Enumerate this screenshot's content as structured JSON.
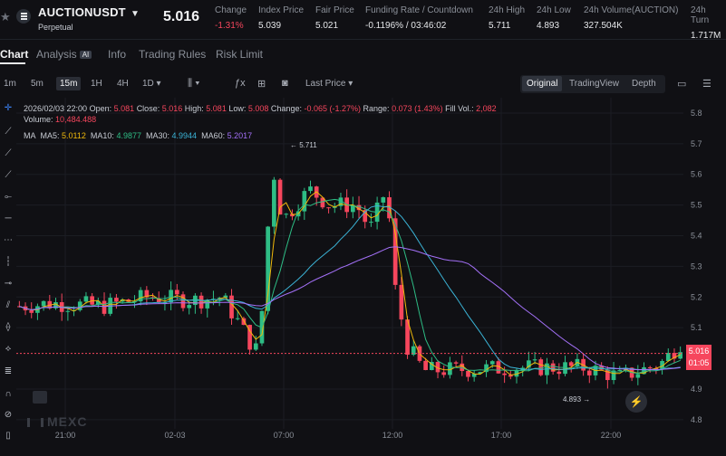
{
  "header": {
    "symbol": "AUCTIONUSDT",
    "contract_type": "Perpetual",
    "last_price": "5.016",
    "stats": [
      {
        "label": "Change",
        "value": "-1.31%",
        "negative": true
      },
      {
        "label": "Index Price",
        "value": "5.039"
      },
      {
        "label": "Fair Price",
        "value": "5.021"
      },
      {
        "label": "Funding Rate / Countdown",
        "value": "-0.1196% / 03:46:02"
      },
      {
        "label": "24h High",
        "value": "5.711"
      },
      {
        "label": "24h Low",
        "value": "4.893"
      },
      {
        "label": "24h Volume(AUCTION)",
        "value": "327.504K"
      },
      {
        "label": "24h Turn",
        "value": "1.717M"
      }
    ]
  },
  "tabs": [
    {
      "label": "Chart",
      "active": true
    },
    {
      "label": "Analysis",
      "badge": "AI"
    },
    {
      "label": "Info"
    },
    {
      "label": "Trading Rules"
    },
    {
      "label": "Risk Limit"
    }
  ],
  "toolbar": {
    "timeframes": [
      {
        "label": "1m"
      },
      {
        "label": "5m"
      },
      {
        "label": "15m",
        "active": true
      },
      {
        "label": "1H"
      },
      {
        "label": "4H"
      },
      {
        "label": "1D ▾"
      }
    ],
    "price_type": "Last Price ▾",
    "views": [
      {
        "label": "Original",
        "active": true
      },
      {
        "label": "TradingView"
      },
      {
        "label": "Depth"
      }
    ]
  },
  "ohlc": {
    "datetime": "2026/02/03 22:00",
    "open_label": "Open:",
    "open": "5.081",
    "close_label": "Close:",
    "close": "5.016",
    "high_label": "High:",
    "high": "5.081",
    "low_label": "Low:",
    "low": "5.008",
    "change_label": "Change:",
    "change": "-0.065 (-1.27%)",
    "range_label": "Range:",
    "range": "0.073 (1.43%)",
    "fill_label": "Fill Vol.:",
    "fill": "2,082",
    "volume_label": "Volume:",
    "volume": "10,484.488"
  },
  "ma": {
    "title": "MA",
    "ma5_label": "MA5:",
    "ma5": "5.0112",
    "ma10_label": "MA10:",
    "ma10": "4.9877",
    "ma30_label": "MA30:",
    "ma30": "4.9944",
    "ma60_label": "MA60:",
    "ma60": "5.2017"
  },
  "colors": {
    "up": "#2ebd85",
    "down": "#f6465d",
    "ma5": "#f0b90b",
    "ma10": "#2ebd85",
    "ma30": "#3bb3d6",
    "ma60": "#a370f7"
  },
  "chart_data": {
    "type": "candlestick",
    "y_axis_labels": [
      "5.8",
      "5.7",
      "5.6",
      "5.5",
      "5.4",
      "5.3",
      "5.2",
      "5.1",
      "4.9",
      "4.8"
    ],
    "x_axis_labels": [
      "21:00",
      "02-03",
      "07:00",
      "12:00",
      "17:00",
      "22:00"
    ],
    "ylim": [
      4.77,
      5.85
    ],
    "high_marker": "5.711",
    "low_marker": "4.893",
    "current_price": "5.016",
    "countdown": "01:05"
  },
  "watermark": "MEXC"
}
